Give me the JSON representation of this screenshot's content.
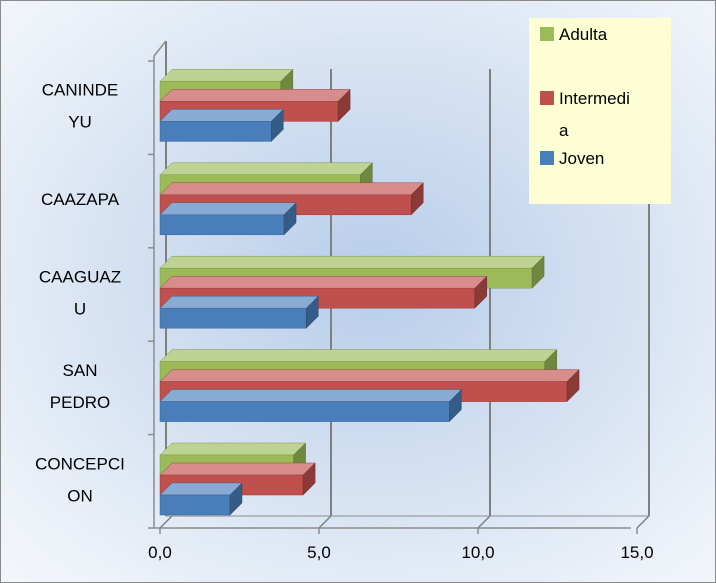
{
  "chart_data": {
    "type": "bar",
    "orientation": "horizontal",
    "style": "3d",
    "categories": [
      "CONCEPCION",
      "SAN PEDRO",
      "CAAGUAZU",
      "CAAZAPA",
      "CANINDEYU"
    ],
    "category_tick_labels": [
      [
        "CONCEPCI",
        "ON"
      ],
      [
        "SAN",
        "PEDRO"
      ],
      [
        "CAAGUAZ",
        "U"
      ],
      [
        "CAAZAPA"
      ],
      [
        "CANINDE",
        "YU"
      ]
    ],
    "series": [
      {
        "name": "Joven",
        "color": "#4a7ebb",
        "values": [
          2.2,
          9.1,
          4.6,
          3.9,
          3.5
        ]
      },
      {
        "name": "Intermedia",
        "color": "#c0504d",
        "values": [
          4.5,
          12.8,
          9.9,
          7.9,
          5.6
        ]
      },
      {
        "name": "Adulta",
        "color": "#9bbb59",
        "values": [
          4.2,
          12.1,
          11.7,
          6.3,
          3.8
        ]
      }
    ],
    "legend_items": [
      {
        "label": "Adulta",
        "color": "#9bbb59"
      },
      {
        "label": "Intermedia",
        "lines": [
          "Intermedi",
          "a"
        ],
        "color": "#c0504d"
      },
      {
        "label": "Joven",
        "color": "#4a7ebb"
      }
    ],
    "x_ticks": [
      "0,0",
      "5,0",
      "10,0",
      "15,0"
    ],
    "xlim": [
      0,
      15
    ],
    "grid": true,
    "legend_position": "top-right",
    "title": "",
    "xlabel": "",
    "ylabel": ""
  }
}
